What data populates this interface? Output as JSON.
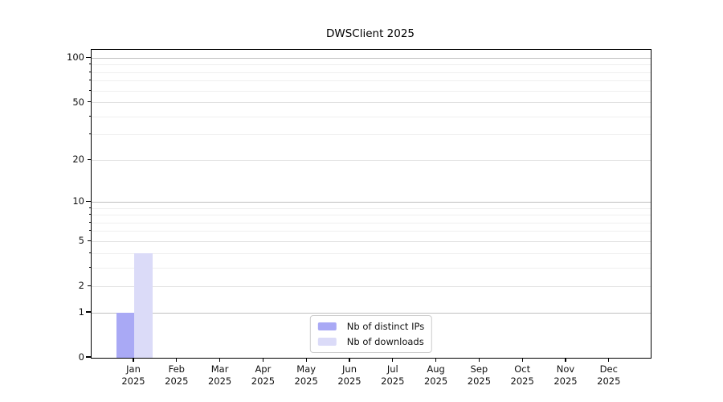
{
  "chart_data": {
    "type": "bar",
    "title": "DWSClient 2025",
    "year": "2025",
    "categories": [
      "Jan",
      "Feb",
      "Mar",
      "Apr",
      "May",
      "Jun",
      "Jul",
      "Aug",
      "Sep",
      "Oct",
      "Nov",
      "Dec"
    ],
    "series": [
      {
        "name": "Nb of distinct IPs",
        "slug": "distinct-ips",
        "color": "#a9a9f5",
        "values": [
          1,
          0,
          0,
          0,
          0,
          0,
          0,
          0,
          0,
          0,
          0,
          0
        ]
      },
      {
        "name": "Nb of downloads",
        "slug": "downloads",
        "color": "#dbdbf8",
        "values": [
          4,
          0,
          0,
          0,
          0,
          0,
          0,
          0,
          0,
          0,
          0,
          0
        ]
      }
    ],
    "yscale": "log10(1+y)",
    "ylim": [
      0,
      113
    ],
    "ytick_values": [
      0,
      1,
      2,
      5,
      10,
      20,
      50,
      100
    ],
    "grid": {
      "major_values": [
        1,
        10,
        100
      ],
      "labeled_minor_values": [
        2,
        5,
        20,
        50
      ],
      "minor_values": [
        3,
        4,
        6,
        7,
        8,
        9,
        30,
        40,
        60,
        70,
        80,
        90
      ],
      "major_color": "#c0c0c0",
      "labeled_minor_color": "#e2e2e2",
      "minor_color": "#efefef"
    },
    "legend_position": "lower center",
    "axis_color": "#000000",
    "text_color": "#111111",
    "background": "#ffffff"
  }
}
